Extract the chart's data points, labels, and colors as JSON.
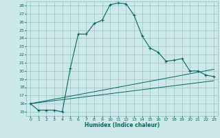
{
  "xlabel": "Humidex (Indice chaleur)",
  "ylabel": "",
  "bg_color": "#cce8e8",
  "grid_color": "#88bbbb",
  "line_color": "#006666",
  "xlim": [
    -0.5,
    23.5
  ],
  "ylim": [
    14.5,
    28.5
  ],
  "xticks": [
    0,
    1,
    2,
    3,
    4,
    5,
    6,
    7,
    8,
    9,
    10,
    11,
    12,
    13,
    14,
    15,
    16,
    17,
    18,
    19,
    20,
    21,
    22,
    23
  ],
  "yticks": [
    15,
    16,
    17,
    18,
    19,
    20,
    21,
    22,
    23,
    24,
    25,
    26,
    27,
    28
  ],
  "line1_x": [
    0,
    1,
    2,
    3,
    4,
    5,
    6,
    7,
    8,
    9,
    10,
    11,
    12,
    13,
    14,
    15,
    16,
    17,
    18,
    19,
    20,
    21,
    22,
    23
  ],
  "line1_y": [
    16.0,
    15.2,
    15.2,
    15.2,
    15.0,
    20.3,
    24.5,
    24.5,
    25.8,
    26.2,
    28.1,
    28.3,
    28.2,
    26.8,
    24.3,
    22.8,
    22.3,
    21.2,
    21.3,
    21.5,
    20.0,
    20.0,
    19.5,
    19.3
  ],
  "line2_x": [
    0,
    23
  ],
  "line2_y": [
    16.0,
    20.2
  ],
  "line3_x": [
    0,
    23
  ],
  "line3_y": [
    16.0,
    18.8
  ]
}
